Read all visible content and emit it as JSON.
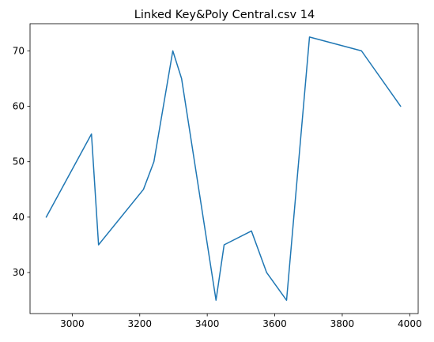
{
  "chart_data": {
    "type": "line",
    "title": "Linked Key&Poly Central.csv 14",
    "xlabel": "",
    "ylabel": "",
    "xlim": [
      2875,
      4025
    ],
    "ylim": [
      22.6,
      74.9
    ],
    "x_ticks": [
      3000,
      3200,
      3400,
      3600,
      3800,
      4000
    ],
    "y_ticks": [
      30,
      40,
      50,
      60,
      70
    ],
    "x_tick_labels": [
      "3000",
      "3200",
      "3400",
      "3600",
      "3800",
      "4000"
    ],
    "y_tick_labels": [
      "30",
      "40",
      "50",
      "60",
      "70"
    ],
    "grid": false,
    "series": [
      {
        "color": "#1f77b4",
        "points": [
          {
            "x": 2923,
            "y": 40
          },
          {
            "x": 3057,
            "y": 55
          },
          {
            "x": 3078,
            "y": 35
          },
          {
            "x": 3211,
            "y": 45
          },
          {
            "x": 3242,
            "y": 50
          },
          {
            "x": 3298,
            "y": 70
          },
          {
            "x": 3324,
            "y": 65
          },
          {
            "x": 3426,
            "y": 25
          },
          {
            "x": 3450,
            "y": 35
          },
          {
            "x": 3531,
            "y": 37.5
          },
          {
            "x": 3576,
            "y": 30
          },
          {
            "x": 3635,
            "y": 25
          },
          {
            "x": 3703,
            "y": 72.5
          },
          {
            "x": 3857,
            "y": 70
          },
          {
            "x": 3973,
            "y": 60
          }
        ]
      }
    ]
  }
}
